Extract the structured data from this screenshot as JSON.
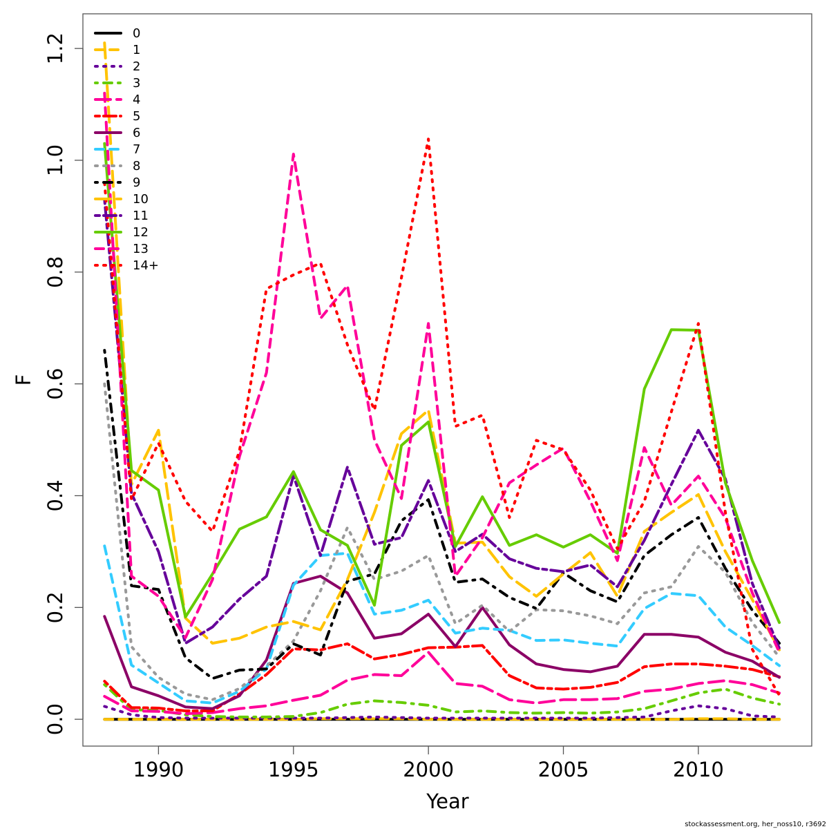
{
  "chart_data": {
    "type": "line",
    "title": "",
    "xlabel": "Year",
    "ylabel": "F",
    "xlim": [
      1987.2,
      2014.2
    ],
    "ylim": [
      -0.048,
      1.262
    ],
    "xticks": [
      1990,
      1995,
      2000,
      2005,
      2010
    ],
    "xtick_labels": [
      "1990",
      "1995",
      "2000",
      "2005",
      "2010"
    ],
    "yticks": [
      0.0,
      0.2,
      0.4,
      0.6,
      0.8,
      1.0,
      1.2
    ],
    "ytick_labels": [
      "0.0",
      "0.2",
      "0.4",
      "0.6",
      "0.8",
      "1.0",
      "1.2"
    ],
    "grid": false,
    "legend_position": "top-left",
    "x": [
      1988,
      1989,
      1990,
      1991,
      1992,
      1993,
      1994,
      1995,
      1996,
      1997,
      1998,
      1999,
      2000,
      2001,
      2002,
      2003,
      2004,
      2005,
      2006,
      2007,
      2008,
      2009,
      2010,
      2011,
      2012,
      2013
    ],
    "series": [
      {
        "name": "0",
        "color": "#000000",
        "dash": "solid",
        "values": [
          0,
          0,
          0,
          0,
          0,
          0,
          0,
          0,
          0,
          0,
          0,
          0,
          0,
          0,
          0,
          0,
          0,
          0,
          0,
          0,
          0,
          0,
          0,
          0,
          0,
          0
        ]
      },
      {
        "name": "1",
        "color": "#FFC300",
        "dash": "dashed",
        "values": [
          0,
          0,
          0,
          0,
          0,
          0,
          0,
          0,
          0.001,
          0.001,
          0.001,
          0.001,
          0,
          0,
          0,
          0,
          0,
          0,
          0,
          0,
          0,
          0,
          0.001,
          0.001,
          0,
          0
        ]
      },
      {
        "name": "2",
        "color": "#66009A",
        "dash": "dotted",
        "values": [
          0.023,
          0.008,
          0.003,
          0.002,
          0.002,
          0.002,
          0.002,
          0.002,
          0.002,
          0.003,
          0.004,
          0.003,
          0.002,
          0.002,
          0.002,
          0.002,
          0.002,
          0.002,
          0.002,
          0.003,
          0.004,
          0.015,
          0.024,
          0.019,
          0.006,
          0.004
        ]
      },
      {
        "name": "3",
        "color": "#66CC00",
        "dash": "dotdash",
        "values": [
          0.062,
          0.017,
          0.016,
          0.008,
          0.005,
          0.004,
          0.004,
          0.005,
          0.012,
          0.027,
          0.033,
          0.03,
          0.025,
          0.013,
          0.015,
          0.012,
          0.011,
          0.012,
          0.011,
          0.013,
          0.019,
          0.033,
          0.047,
          0.054,
          0.038,
          0.027
        ]
      },
      {
        "name": "4",
        "color": "#FF0099",
        "dash": "longdash",
        "values": [
          0.041,
          0.015,
          0.014,
          0.01,
          0.012,
          0.019,
          0.024,
          0.034,
          0.043,
          0.07,
          0.08,
          0.078,
          0.12,
          0.064,
          0.059,
          0.035,
          0.029,
          0.035,
          0.035,
          0.037,
          0.05,
          0.054,
          0.064,
          0.069,
          0.062,
          0.047
        ]
      },
      {
        "name": "5",
        "color": "#FF0000",
        "dash": "twodash",
        "values": [
          0.068,
          0.021,
          0.02,
          0.015,
          0.015,
          0.045,
          0.08,
          0.126,
          0.124,
          0.135,
          0.108,
          0.116,
          0.128,
          0.129,
          0.132,
          0.078,
          0.056,
          0.054,
          0.057,
          0.066,
          0.094,
          0.099,
          0.099,
          0.095,
          0.089,
          0.076
        ]
      },
      {
        "name": "6",
        "color": "#8B0066",
        "dash": "solid",
        "values": [
          0.184,
          0.058,
          0.042,
          0.022,
          0.019,
          0.042,
          0.106,
          0.243,
          0.256,
          0.226,
          0.145,
          0.153,
          0.188,
          0.13,
          0.2,
          0.133,
          0.099,
          0.089,
          0.085,
          0.095,
          0.152,
          0.152,
          0.147,
          0.12,
          0.104,
          0.075
        ]
      },
      {
        "name": "7",
        "color": "#33CCFF",
        "dash": "dashed",
        "values": [
          0.31,
          0.097,
          0.065,
          0.033,
          0.029,
          0.05,
          0.09,
          0.24,
          0.293,
          0.297,
          0.188,
          0.195,
          0.213,
          0.154,
          0.163,
          0.159,
          0.141,
          0.142,
          0.136,
          0.131,
          0.198,
          0.225,
          0.221,
          0.165,
          0.132,
          0.096
        ]
      },
      {
        "name": "8",
        "color": "#999999",
        "dash": "dotted",
        "values": [
          0.6,
          0.13,
          0.075,
          0.045,
          0.035,
          0.055,
          0.095,
          0.14,
          0.23,
          0.343,
          0.25,
          0.265,
          0.293,
          0.171,
          0.204,
          0.157,
          0.196,
          0.194,
          0.185,
          0.171,
          0.226,
          0.237,
          0.309,
          0.263,
          0.173,
          0.111
        ]
      },
      {
        "name": "9",
        "color": "#000000",
        "dash": "dotdash",
        "values": [
          0.66,
          0.239,
          0.232,
          0.11,
          0.073,
          0.088,
          0.09,
          0.135,
          0.115,
          0.247,
          0.26,
          0.355,
          0.393,
          0.245,
          0.251,
          0.218,
          0.198,
          0.262,
          0.23,
          0.21,
          0.293,
          0.33,
          0.361,
          0.27,
          0.195,
          0.136
        ]
      },
      {
        "name": "10",
        "color": "#FFC300",
        "dash": "longdash",
        "values": [
          1.21,
          0.42,
          0.517,
          0.181,
          0.136,
          0.145,
          0.165,
          0.175,
          0.16,
          0.25,
          0.37,
          0.511,
          0.553,
          0.315,
          0.317,
          0.255,
          0.22,
          0.26,
          0.298,
          0.22,
          0.336,
          0.37,
          0.402,
          0.3,
          0.214,
          0.124
        ]
      },
      {
        "name": "11",
        "color": "#66009A",
        "dash": "twodash",
        "values": [
          0.93,
          0.404,
          0.3,
          0.136,
          0.165,
          0.215,
          0.256,
          0.436,
          0.293,
          0.451,
          0.313,
          0.325,
          0.427,
          0.3,
          0.331,
          0.287,
          0.27,
          0.264,
          0.276,
          0.237,
          0.32,
          0.42,
          0.517,
          0.43,
          0.243,
          0.127
        ]
      },
      {
        "name": "12",
        "color": "#66CC00",
        "dash": "solid",
        "values": [
          1.03,
          0.445,
          0.41,
          0.183,
          0.26,
          0.34,
          0.362,
          0.443,
          0.339,
          0.311,
          0.204,
          0.49,
          0.532,
          0.309,
          0.398,
          0.311,
          0.33,
          0.308,
          0.33,
          0.297,
          0.591,
          0.697,
          0.696,
          0.423,
          0.284,
          0.173
        ]
      },
      {
        "name": "13",
        "color": "#FF0099",
        "dash": "dashed",
        "values": [
          1.12,
          0.256,
          0.22,
          0.146,
          0.25,
          0.47,
          0.62,
          1.011,
          0.717,
          0.776,
          0.5,
          0.395,
          0.708,
          0.256,
          0.325,
          0.423,
          0.455,
          0.485,
          0.39,
          0.284,
          0.486,
          0.383,
          0.435,
          0.36,
          0.226,
          0.12
        ]
      },
      {
        "name": "14+",
        "color": "#FF0000",
        "dash": "dotted",
        "values": [
          0.96,
          0.393,
          0.494,
          0.39,
          0.336,
          0.48,
          0.77,
          0.795,
          0.816,
          0.67,
          0.553,
          0.79,
          1.038,
          0.524,
          0.544,
          0.361,
          0.499,
          0.482,
          0.41,
          0.305,
          0.39,
          0.55,
          0.708,
          0.37,
          0.125,
          0.043
        ]
      }
    ],
    "footer_text": "stockassessment.org, her_noss10, r3692"
  }
}
